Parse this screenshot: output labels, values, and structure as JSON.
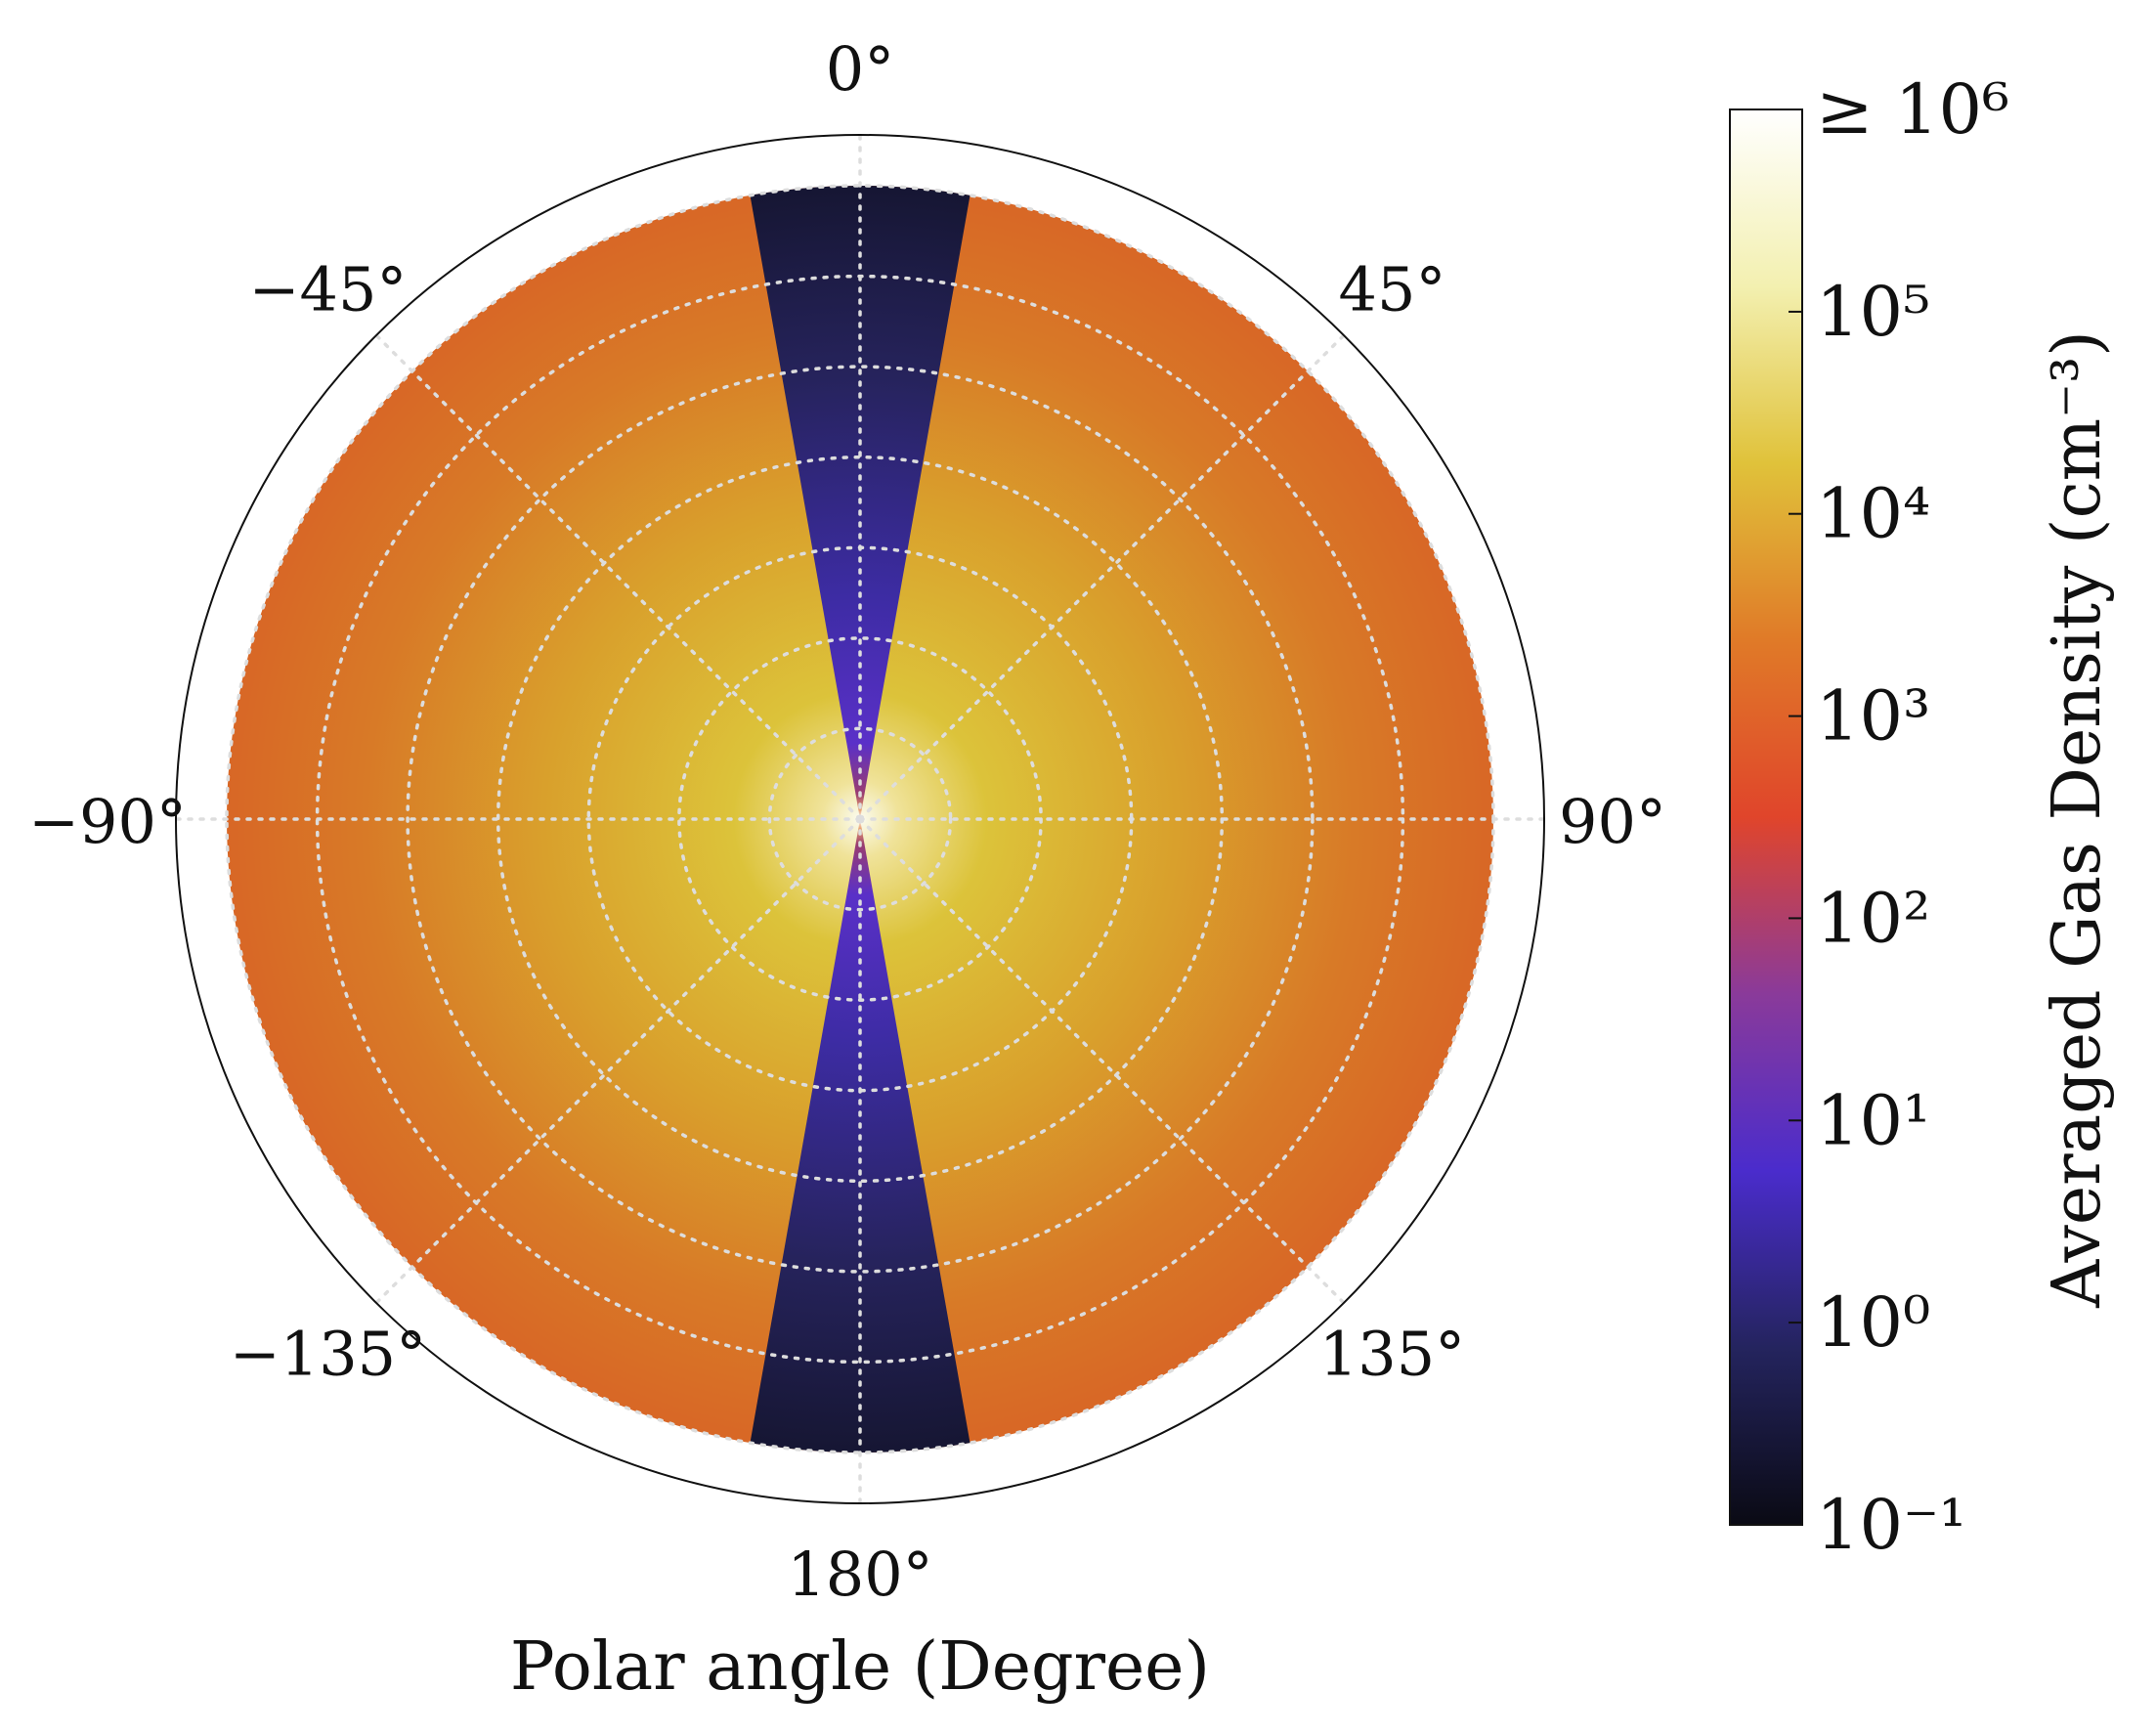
{
  "chart_data": {
    "type": "heatmap",
    "projection": "polar",
    "title": "",
    "xlabel": "Polar angle (Degree)",
    "angular_ticks": [
      {
        "angle": 0,
        "label": "0°"
      },
      {
        "angle": 45,
        "label": "45°"
      },
      {
        "angle": 90,
        "label": "90°"
      },
      {
        "angle": 135,
        "label": "135°"
      },
      {
        "angle": 180,
        "label": "180°"
      },
      {
        "angle": -135,
        "label": "−135°"
      },
      {
        "angle": -90,
        "label": "−90°"
      },
      {
        "angle": -45,
        "label": "−45°"
      }
    ],
    "angular_gridline_angles": [
      0,
      45,
      90,
      135,
      180,
      -135,
      -90,
      -45
    ],
    "radial_gridline_count": 7,
    "grid": true,
    "cone": {
      "half_opening_angle_deg": 10,
      "value_inner": 10,
      "value_outer": 0.1
    },
    "outer_region": {
      "value_center": 1000000,
      "value_mid": 10000,
      "value_outer": 1000
    },
    "colorbar": {
      "label": "Averaged Gas Density (cm⁻³)",
      "scale": "log",
      "range": [
        0.1,
        1000000
      ],
      "ticks": [
        {
          "value": 1000000,
          "label": "≥ 10⁶"
        },
        {
          "value": 100000,
          "label": "10⁵"
        },
        {
          "value": 10000,
          "label": "10⁴"
        },
        {
          "value": 1000,
          "label": "10³"
        },
        {
          "value": 100,
          "label": "10²"
        },
        {
          "value": 10,
          "label": "10¹"
        },
        {
          "value": 1,
          "label": "10⁰"
        },
        {
          "value": 0.1,
          "label": "10⁻¹"
        }
      ],
      "colormap": "CMRmap-like",
      "colors": [
        "#0a0a14",
        "#24245e",
        "#4a2ccc",
        "#8a3a9a",
        "#e0452b",
        "#e07a28",
        "#e0c23a",
        "#f3f0b0",
        "#ffffff"
      ]
    }
  }
}
